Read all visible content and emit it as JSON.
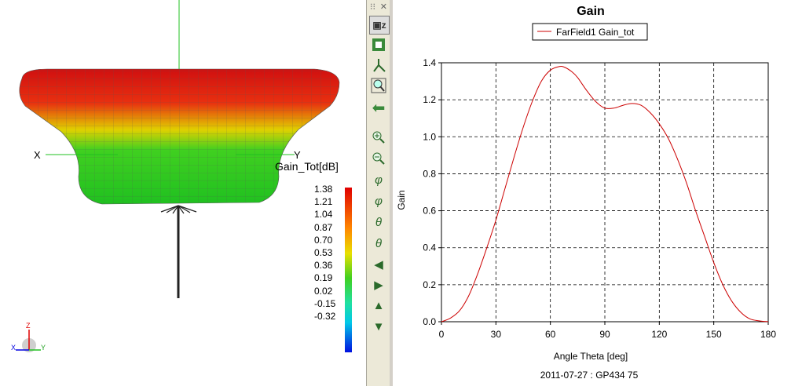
{
  "left_view": {
    "axis_x_label": "X",
    "axis_y_label": "Y",
    "colorbar_title": "Gain_Tot[dB]",
    "colorbar_ticks": [
      "1.38",
      "1.21",
      "1.04",
      "0.87",
      "0.70",
      "0.53",
      "0.36",
      "0.19",
      "0.02",
      "-0.15",
      "-0.32"
    ],
    "triad": {
      "z": "Z",
      "x": "X",
      "y": "Y"
    }
  },
  "toolbar": {
    "buttons": [
      {
        "name": "view-z-button",
        "icon": "cube-z-icon"
      },
      {
        "name": "fit-view-button",
        "icon": "fit-icon"
      },
      {
        "name": "axes-r-button",
        "icon": "axes-icon"
      },
      {
        "name": "zoom-window-button",
        "icon": "magnifier-icon"
      },
      {
        "name": "back-button",
        "icon": "left-arrow-icon"
      },
      {
        "name": "zoom-in-button",
        "icon": "zoom-in-icon"
      },
      {
        "name": "zoom-out-button",
        "icon": "zoom-out-icon"
      },
      {
        "name": "rotate-phi-ccw-button",
        "icon": "phi-ccw-icon"
      },
      {
        "name": "rotate-phi-cw-button",
        "icon": "phi-cw-icon"
      },
      {
        "name": "rotate-theta-up-button",
        "icon": "theta-up-icon"
      },
      {
        "name": "rotate-theta-down-button",
        "icon": "theta-down-icon"
      },
      {
        "name": "pan-left-button",
        "icon": "arrow-left-icon"
      },
      {
        "name": "pan-right-button",
        "icon": "arrow-right-icon"
      },
      {
        "name": "pan-up-button",
        "icon": "arrow-up-icon"
      },
      {
        "name": "pan-down-button",
        "icon": "arrow-down-icon"
      }
    ],
    "glyphs": {
      "phi": "φ",
      "theta": "θ"
    }
  },
  "chart_data": {
    "type": "line",
    "title": "Gain",
    "xlabel": "Angle Theta [deg]",
    "ylabel": "Gain",
    "footer": "2011-07-27 : GP434 75",
    "xlim": [
      0,
      180
    ],
    "ylim": [
      0,
      1.4
    ],
    "xticks": [
      "0",
      "30",
      "60",
      "90",
      "120",
      "150",
      "180"
    ],
    "yticks": [
      "0.0",
      "0.2",
      "0.4",
      "0.6",
      "0.8",
      "1.0",
      "1.2",
      "1.4"
    ],
    "grid": true,
    "legend_position": "top-center",
    "series": [
      {
        "name": "FarField1 Gain_tot",
        "color": "#cc0000",
        "x": [
          0,
          5,
          10,
          15,
          20,
          25,
          30,
          35,
          40,
          45,
          50,
          55,
          60,
          65,
          68,
          72,
          75,
          80,
          85,
          90,
          95,
          100,
          105,
          110,
          115,
          120,
          125,
          130,
          135,
          140,
          145,
          150,
          155,
          160,
          165,
          170,
          175,
          180
        ],
        "y": [
          0.0,
          0.02,
          0.06,
          0.14,
          0.26,
          0.4,
          0.55,
          0.72,
          0.89,
          1.05,
          1.19,
          1.3,
          1.36,
          1.38,
          1.375,
          1.35,
          1.32,
          1.25,
          1.19,
          1.155,
          1.155,
          1.17,
          1.18,
          1.17,
          1.13,
          1.07,
          0.99,
          0.88,
          0.75,
          0.6,
          0.46,
          0.32,
          0.2,
          0.11,
          0.05,
          0.015,
          0.005,
          0.0
        ]
      }
    ]
  }
}
